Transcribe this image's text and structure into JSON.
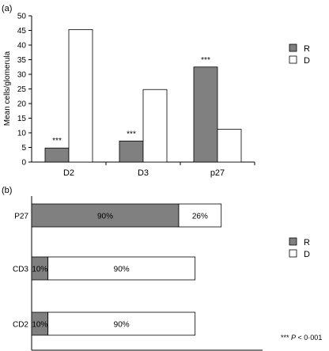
{
  "chart_data": [
    {
      "panel_label": "(a)",
      "type": "bar",
      "ylabel": "Mean cells/glomerula",
      "ylim": [
        0,
        50
      ],
      "yticks": [
        0,
        5,
        10,
        15,
        20,
        25,
        30,
        35,
        40,
        45,
        50
      ],
      "categories": [
        "D2",
        "D3",
        "p27"
      ],
      "series": [
        {
          "name": "R",
          "color": "#808080",
          "values": [
            4.8,
            7.2,
            32.5
          ]
        },
        {
          "name": "D",
          "color": "#ffffff",
          "values": [
            45.3,
            24.8,
            11.2
          ]
        }
      ],
      "annotations": [
        "***",
        "***",
        "***"
      ],
      "legend_position": "right",
      "grid": false
    },
    {
      "panel_label": "(b)",
      "type": "bar",
      "orientation": "horizontal-stacked",
      "categories": [
        "P27",
        "CD3",
        "CD2"
      ],
      "series": [
        {
          "name": "R",
          "color": "#808080",
          "values": [
            90,
            10,
            10
          ],
          "labels": [
            "90%",
            "10%",
            "10%"
          ]
        },
        {
          "name": "D",
          "color": "#ffffff",
          "values": [
            26,
            90,
            90
          ],
          "labels": [
            "26%",
            "90%",
            "90%"
          ]
        }
      ],
      "legend_position": "right",
      "grid": false
    }
  ],
  "footnote": {
    "stars": "***",
    "p": "P",
    "rest": " < 0·001"
  }
}
